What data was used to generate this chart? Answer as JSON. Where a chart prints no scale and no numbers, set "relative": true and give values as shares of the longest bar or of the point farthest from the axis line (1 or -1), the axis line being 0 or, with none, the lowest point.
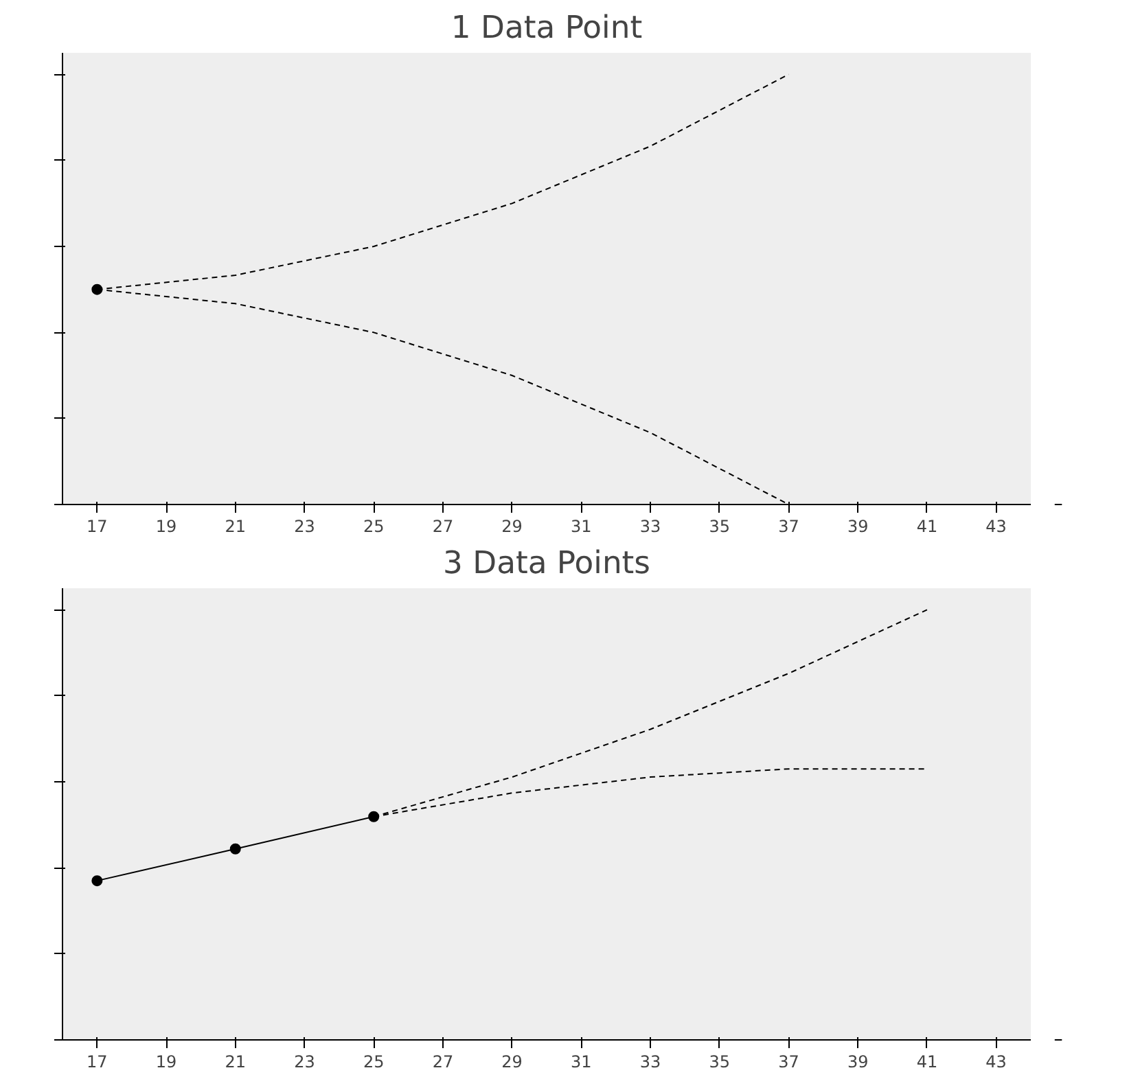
{
  "chart_data": [
    {
      "type": "line",
      "title": "1 Data Point",
      "relative": true,
      "xlim": [
        16,
        44
      ],
      "xticks": [
        17,
        19,
        21,
        23,
        25,
        27,
        29,
        31,
        33,
        35,
        37,
        39,
        41,
        43
      ],
      "tick_labels": "x",
      "grid": false,
      "series": [
        {
          "type": "scatter",
          "color": "#000000",
          "x": [
            17
          ],
          "values": [
            0.5
          ]
        },
        {
          "color": "#000000",
          "line_style": "dashed",
          "marker": "none",
          "x": [
            17,
            21,
            25,
            29,
            33,
            37
          ],
          "values": [
            0.5,
            0.533,
            0.6,
            0.7,
            0.833,
            1.0
          ]
        },
        {
          "color": "#000000",
          "line_style": "dashed",
          "marker": "none",
          "x": [
            17,
            21,
            25,
            29,
            33,
            37
          ],
          "values": [
            0.5,
            0.467,
            0.4,
            0.3,
            0.167,
            0.0
          ]
        }
      ]
    },
    {
      "type": "line",
      "title": "3 Data Points",
      "relative": true,
      "xlim": [
        16,
        44
      ],
      "xticks": [
        17,
        19,
        21,
        23,
        25,
        27,
        29,
        31,
        33,
        35,
        37,
        39,
        41,
        43
      ],
      "tick_labels": "x",
      "grid": false,
      "series": [
        {
          "color": "#000000",
          "line_style": "solid",
          "marker": "circle",
          "x": [
            17,
            21,
            25
          ],
          "values": [
            0.37,
            0.444,
            0.519
          ]
        },
        {
          "color": "#000000",
          "line_style": "dashed",
          "marker": "none",
          "x": [
            25,
            29,
            33,
            37,
            41
          ],
          "values": [
            0.519,
            0.611,
            0.722,
            0.852,
            1.0
          ]
        },
        {
          "color": "#000000",
          "line_style": "dashed",
          "marker": "none",
          "x": [
            25,
            29,
            33,
            37,
            41
          ],
          "values": [
            0.519,
            0.574,
            0.611,
            0.63,
            0.63
          ]
        }
      ]
    }
  ]
}
